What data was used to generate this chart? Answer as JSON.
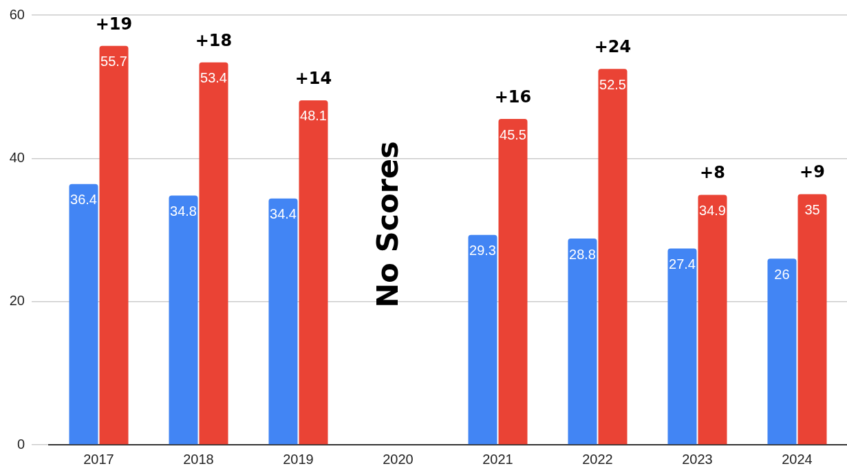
{
  "chart_data": {
    "type": "bar",
    "categories": [
      "2017",
      "2018",
      "2019",
      "2020",
      "2021",
      "2022",
      "2023",
      "2024"
    ],
    "series": [
      {
        "color": "#4285f4",
        "values": [
          36.4,
          34.8,
          34.4,
          null,
          29.3,
          28.8,
          27.4,
          26
        ]
      },
      {
        "color": "#ea4335",
        "values": [
          55.7,
          53.4,
          48.1,
          null,
          45.5,
          52.5,
          34.9,
          35
        ]
      }
    ],
    "ylim": [
      0,
      60
    ],
    "yticks": [
      0,
      20,
      40,
      60
    ],
    "grid": "y",
    "legend": false,
    "data_labels": true,
    "annotations": [
      {
        "text": "+19",
        "x": "2017",
        "y": 55.7
      },
      {
        "text": "+18",
        "x": "2018",
        "y": 53.4
      },
      {
        "text": "+14",
        "x": "2019",
        "y": 48.1
      },
      "No Scores",
      {
        "text": "+16",
        "x": "2021",
        "y": 45.5
      },
      {
        "text": "+24",
        "x": "2022",
        "y": 52.5
      },
      {
        "text": "+8",
        "x": "2023",
        "y": 34.9
      },
      {
        "text": "+9",
        "x": "2024",
        "y": 35
      }
    ]
  }
}
